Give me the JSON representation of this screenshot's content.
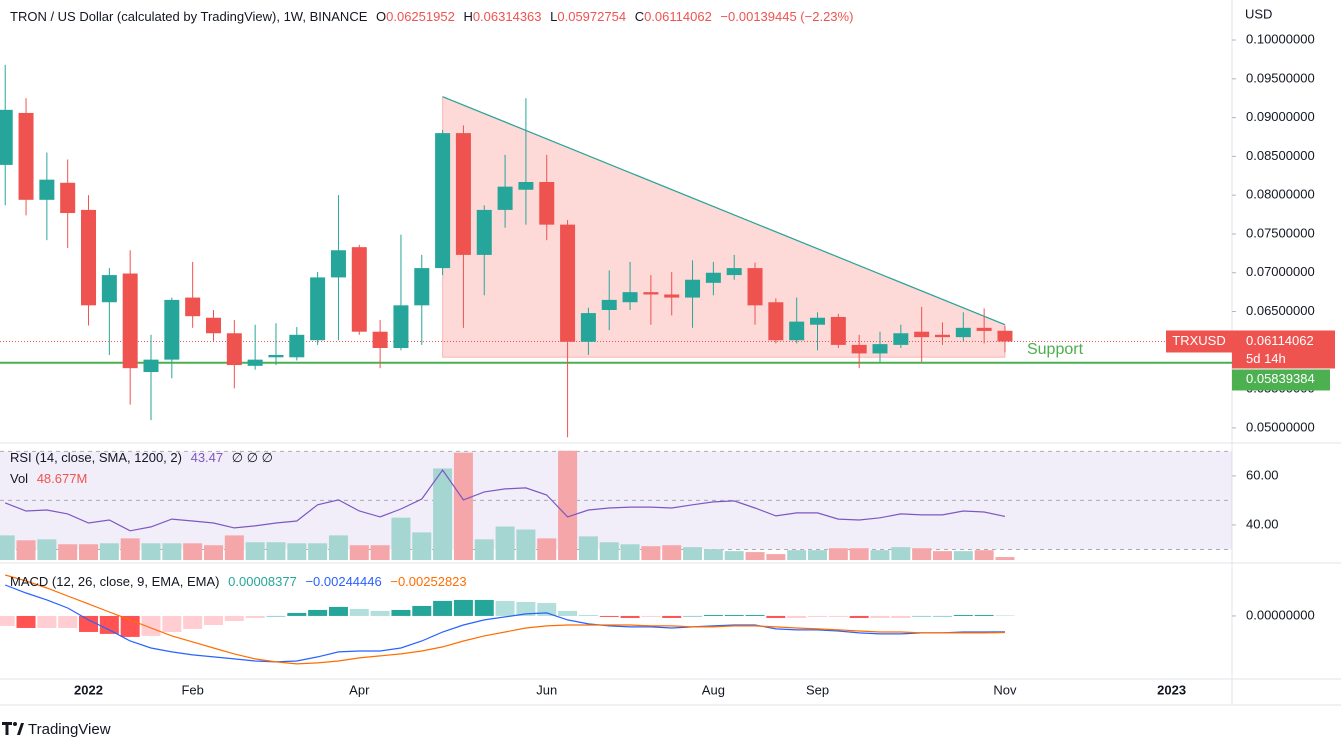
{
  "chart_data": [
    {
      "type": "candlestick",
      "title": "TRON / US Dollar (calculated by TradingView), 1W, BINANCE",
      "ohlc_labels": [
        "O",
        "H",
        "L",
        "C"
      ],
      "change_label": "−0.00139445 (−2.23%)",
      "y_axis_label": "USD",
      "colors": {
        "up": "#26a69a",
        "down": "#ef5350"
      },
      "xlim": [
        -0.25,
        58.9
      ],
      "xticks": [
        {
          "value": 4,
          "label": "2022"
        },
        {
          "value": 9,
          "label": "Feb"
        },
        {
          "value": 17,
          "label": "Apr"
        },
        {
          "value": 26,
          "label": "Jun"
        },
        {
          "value": 34,
          "label": "Aug"
        },
        {
          "value": 39,
          "label": "Sep"
        },
        {
          "value": 48,
          "label": "Nov"
        },
        {
          "value": 56,
          "label": "2023"
        }
      ],
      "ylim": [
        0.04844,
        0.10516
      ],
      "yticks": [
        {
          "value": 0.1,
          "label": "0.10000000"
        },
        {
          "value": 0.095,
          "label": "0.09500000"
        },
        {
          "value": 0.09,
          "label": "0.09000000"
        },
        {
          "value": 0.085,
          "label": "0.08500000"
        },
        {
          "value": 0.08,
          "label": "0.08000000"
        },
        {
          "value": 0.075,
          "label": "0.07500000"
        },
        {
          "value": 0.07,
          "label": "0.07000000"
        },
        {
          "value": 0.065,
          "label": "0.06500000"
        },
        {
          "value": 0.06,
          "label": "0.06000000"
        },
        {
          "value": 0.055,
          "label": "0.05500000"
        },
        {
          "value": 0.05,
          "label": "0.05000000"
        }
      ],
      "series": [
        {
          "name": "TRXUSD",
          "open": [
            0.0839,
            0.0906,
            0.0794,
            0.0816,
            0.0781,
            0.0662,
            0.0699,
            0.0572,
            0.0588,
            0.0668,
            0.0642,
            0.0622,
            0.058,
            0.0591,
            0.0591,
            0.0613,
            0.0694,
            0.0733,
            0.0624,
            0.0603,
            0.0658,
            0.0706,
            0.088,
            0.0723,
            0.0781,
            0.0807,
            0.0817,
            0.0762,
            0.0611,
            0.0652,
            0.0662,
            0.0675,
            0.0672,
            0.0668,
            0.0687,
            0.0697,
            0.0706,
            0.0662,
            0.0613,
            0.0633,
            0.0643,
            0.0607,
            0.0596,
            0.0607,
            0.0624,
            0.062,
            0.0617,
            0.0629,
            0.06251952
          ],
          "high": [
            0.0968,
            0.0925,
            0.0855,
            0.0846,
            0.08,
            0.0706,
            0.0729,
            0.062,
            0.0668,
            0.0714,
            0.0652,
            0.0639,
            0.0633,
            0.0635,
            0.063,
            0.0701,
            0.08,
            0.0736,
            0.0639,
            0.0749,
            0.0723,
            0.0884,
            0.089,
            0.0787,
            0.0852,
            0.0925,
            0.0852,
            0.0768,
            0.0655,
            0.0703,
            0.0714,
            0.0697,
            0.0701,
            0.0716,
            0.0714,
            0.0723,
            0.0713,
            0.0667,
            0.0668,
            0.0649,
            0.0647,
            0.062,
            0.0624,
            0.0633,
            0.0656,
            0.0636,
            0.0649,
            0.0654,
            0.06314363
          ],
          "low": [
            0.0787,
            0.0774,
            0.0742,
            0.0732,
            0.0632,
            0.0594,
            0.053,
            0.051,
            0.0564,
            0.0629,
            0.0611,
            0.0551,
            0.0575,
            0.0581,
            0.0587,
            0.0607,
            0.0613,
            0.062,
            0.0577,
            0.06,
            0.0607,
            0.0697,
            0.0629,
            0.0671,
            0.0758,
            0.0762,
            0.0742,
            0.0488,
            0.0594,
            0.0626,
            0.0652,
            0.0633,
            0.0645,
            0.0629,
            0.0671,
            0.0691,
            0.0633,
            0.0609,
            0.0609,
            0.06,
            0.0603,
            0.0577,
            0.0585,
            0.0603,
            0.0585,
            0.0607,
            0.0611,
            0.0609,
            0.05972754
          ],
          "close": [
            0.091,
            0.0794,
            0.082,
            0.0777,
            0.0658,
            0.0697,
            0.0577,
            0.0588,
            0.0665,
            0.0644,
            0.0622,
            0.0581,
            0.0588,
            0.0594,
            0.062,
            0.0694,
            0.0729,
            0.0624,
            0.0603,
            0.0658,
            0.0706,
            0.088,
            0.0723,
            0.0781,
            0.0811,
            0.0817,
            0.0762,
            0.0611,
            0.0648,
            0.0665,
            0.0675,
            0.0672,
            0.0668,
            0.0691,
            0.07,
            0.0706,
            0.0658,
            0.0613,
            0.0637,
            0.0642,
            0.0607,
            0.0596,
            0.0608,
            0.0622,
            0.0617,
            0.0617,
            0.0629,
            0.0625,
            0.06114062
          ]
        }
      ],
      "countdown": "5d 14h",
      "support": {
        "value": 0.05839384,
        "label": "Support",
        "color": "#4caf50"
      },
      "triangle": {
        "points": [
          [
            21,
            0.0927
          ],
          [
            48,
            0.0633
          ],
          [
            48,
            0.0591
          ],
          [
            21,
            0.0591
          ]
        ],
        "fill": "rgba(244,67,54,0.2)",
        "edge_color": "#26a69a"
      }
    },
    {
      "type": "rsi",
      "title": "RSI (14, close, SMA, 1200, 2)",
      "extra_label": "∅ ∅ ∅",
      "color": "#7e57c2",
      "ylim": [
        25.7,
        71.8
      ],
      "yticks": [
        {
          "value": 60,
          "label": "60.00"
        },
        {
          "value": 40,
          "label": "40.00"
        }
      ],
      "levels": [
        70,
        50,
        30
      ],
      "band": [
        30,
        70
      ],
      "values": [
        49.0,
        45.7,
        46.1,
        44.5,
        40.8,
        42.0,
        37.6,
        39.2,
        42.4,
        41.6,
        40.8,
        38.8,
        39.6,
        40.8,
        41.6,
        48.2,
        50.2,
        45.7,
        43.3,
        46.5,
        50.6,
        62.4,
        50.2,
        53.5,
        54.7,
        55.1,
        52.2,
        43.3,
        46.1,
        46.9,
        47.3,
        47.3,
        46.9,
        48.2,
        49.4,
        49.8,
        46.9,
        43.7,
        44.9,
        44.9,
        42.4,
        42.0,
        42.9,
        44.5,
        44.1,
        44.1,
        45.7,
        45.3,
        43.47
      ],
      "volume": {
        "name": "Vol",
        "ylim": [
          0,
          1860
        ],
        "colors": {
          "up": "#a5d6d2",
          "down": "#f5a6a8"
        },
        "values": [
          405,
          324,
          340,
          259,
          259,
          275,
          356,
          275,
          275,
          275,
          243,
          405,
          292,
          292,
          275,
          275,
          405,
          243,
          243,
          697,
          454,
          1507,
          1766,
          340,
          551,
          502,
          356,
          1798,
          389,
          292,
          259,
          227,
          243,
          211,
          178,
          146,
          130,
          97,
          162,
          162,
          194,
          194,
          162,
          211,
          194,
          146,
          146,
          162,
          48.677
        ],
        "value_labels": [
          null,
          null,
          null,
          null,
          null,
          null,
          null,
          null,
          null,
          null,
          null,
          null,
          null,
          null,
          null,
          null,
          null,
          null,
          null,
          null,
          null,
          null,
          null,
          null,
          null,
          null,
          null,
          null,
          null,
          null,
          null,
          null,
          null,
          null,
          null,
          null,
          null,
          null,
          null,
          null,
          null,
          null,
          null,
          null,
          null,
          null,
          null,
          null,
          "48.677M"
        ]
      }
    },
    {
      "type": "macd",
      "title": "MACD (12, 26, close, 9, EMA, EMA)",
      "ylim": [
        -0.0095,
        0.0078
      ],
      "yticks": [
        {
          "value": 0,
          "label": "0.00000000"
        }
      ],
      "histogram": {
        "colors": [
          "#26a69a",
          "#b2dfdb",
          "#ffcdd2",
          "#ff5252"
        ],
        "values": [
          -0.00153,
          -0.00184,
          -0.00184,
          -0.00184,
          -0.00245,
          -0.00275,
          -0.00321,
          -0.00306,
          -0.00245,
          -0.00199,
          -0.00138,
          -0.00077,
          -0.00031,
          0,
          0.00046,
          0.00092,
          0.00138,
          0.00107,
          0.00077,
          0.00092,
          0.00153,
          0.0023,
          0.00245,
          0.00245,
          0.0023,
          0.00214,
          0.00199,
          0.00077,
          0.00015,
          -0.00015,
          -0.00031,
          -0.00015,
          -0.00031,
          0,
          0.00015,
          0.00015,
          0.00015,
          -0.00031,
          -0.00031,
          -0.00015,
          -0.00015,
          -0.00031,
          -0.00031,
          -0.00031,
          0,
          0,
          0.00015,
          0.00015,
          8.377e-05
        ]
      },
      "macd": {
        "color": "#2962ff",
        "values": [
          0.00474,
          0.00352,
          0.00245,
          0.00122,
          -0.00061,
          -0.00214,
          -0.00383,
          -0.0049,
          -0.00551,
          -0.00597,
          -0.00627,
          -0.00658,
          -0.00689,
          -0.00704,
          -0.00689,
          -0.00627,
          -0.00551,
          -0.00536,
          -0.00536,
          -0.0049,
          -0.00383,
          -0.00245,
          -0.00138,
          -0.00061,
          -0.00015,
          0.00031,
          0.00046,
          -0.00061,
          -0.00122,
          -0.00153,
          -0.00168,
          -0.00168,
          -0.00184,
          -0.00168,
          -0.00153,
          -0.00138,
          -0.00138,
          -0.00199,
          -0.00214,
          -0.00214,
          -0.0023,
          -0.0026,
          -0.00275,
          -0.00275,
          -0.0026,
          -0.0026,
          -0.00245,
          -0.00245,
          -0.00244446
        ],
        "value_labels": [
          null,
          null,
          null,
          null,
          null,
          null,
          null,
          null,
          null,
          null,
          null,
          null,
          null,
          null,
          null,
          null,
          null,
          null,
          null,
          null,
          null,
          null,
          null,
          null,
          null,
          null,
          null,
          null,
          null,
          null,
          null,
          null,
          null,
          null,
          null,
          null,
          null,
          null,
          null,
          null,
          null,
          null,
          null,
          null,
          null,
          null,
          null,
          null,
          "−0.00244446"
        ]
      },
      "signal": {
        "color": "#ff6d00",
        "values": [
          0.00627,
          0.00536,
          0.00428,
          0.00306,
          0.00184,
          0.00061,
          -0.00061,
          -0.00184,
          -0.00306,
          -0.00398,
          -0.0049,
          -0.00581,
          -0.00658,
          -0.00704,
          -0.00734,
          -0.00719,
          -0.00689,
          -0.00643,
          -0.00612,
          -0.00581,
          -0.00536,
          -0.00474,
          -0.00383,
          -0.00306,
          -0.00245,
          -0.00184,
          -0.00153,
          -0.00138,
          -0.00138,
          -0.00138,
          -0.00138,
          -0.00153,
          -0.00153,
          -0.00168,
          -0.00168,
          -0.00153,
          -0.00153,
          -0.00168,
          -0.00184,
          -0.00199,
          -0.00214,
          -0.0023,
          -0.00245,
          -0.00245,
          -0.0026,
          -0.0026,
          -0.0026,
          -0.0026,
          -0.00252823
        ],
        "value_labels": [
          null,
          null,
          null,
          null,
          null,
          null,
          null,
          null,
          null,
          null,
          null,
          null,
          null,
          null,
          null,
          null,
          null,
          null,
          null,
          null,
          null,
          null,
          null,
          null,
          null,
          null,
          null,
          null,
          null,
          null,
          null,
          null,
          null,
          null,
          null,
          null,
          null,
          null,
          null,
          null,
          null,
          null,
          null,
          null,
          null,
          null,
          null,
          null,
          "−0.00252823"
        ]
      }
    }
  ],
  "brand": "TradingView"
}
